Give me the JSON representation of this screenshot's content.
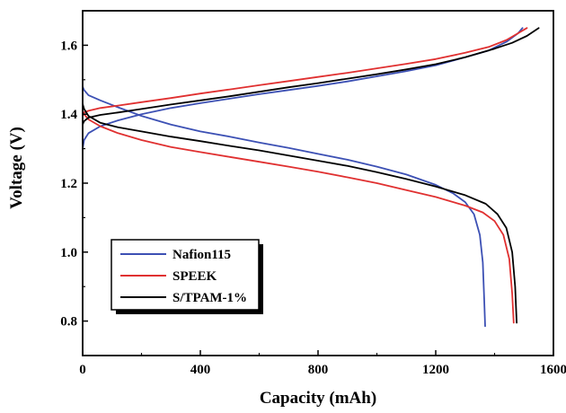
{
  "chart_data": {
    "type": "line",
    "xlabel": "Capacity (mAh)",
    "ylabel": "Voltage (V)",
    "xlim": [
      0,
      1600
    ],
    "ylim": [
      0.7,
      1.7
    ],
    "xticks": [
      0,
      400,
      800,
      1200,
      1600
    ],
    "yticks": [
      0.8,
      1.0,
      1.2,
      1.4,
      1.6
    ],
    "xtick_labels": [
      "0",
      "400",
      "800",
      "1200",
      "1600"
    ],
    "ytick_labels": [
      "0.8",
      "1.0",
      "1.2",
      "1.4",
      "1.6"
    ],
    "grid": false,
    "legend_position": "bottom-left",
    "series": [
      {
        "name": "Nafion115",
        "color": "#3c50b4",
        "charge": {
          "x": [
            0,
            5,
            20,
            60,
            120,
            200,
            300,
            400,
            500,
            600,
            700,
            800,
            900,
            1000,
            1100,
            1200,
            1300,
            1380,
            1440,
            1480,
            1495
          ],
          "y": [
            1.3,
            1.325,
            1.345,
            1.365,
            1.382,
            1.4,
            1.418,
            1.432,
            1.445,
            1.458,
            1.47,
            1.482,
            1.495,
            1.51,
            1.525,
            1.542,
            1.565,
            1.585,
            1.61,
            1.635,
            1.65
          ]
        },
        "discharge": {
          "x": [
            0,
            5,
            20,
            60,
            120,
            200,
            300,
            400,
            500,
            600,
            700,
            800,
            900,
            1000,
            1100,
            1200,
            1260,
            1300,
            1330,
            1350,
            1360,
            1365,
            1368
          ],
          "y": [
            1.48,
            1.47,
            1.455,
            1.44,
            1.42,
            1.395,
            1.37,
            1.35,
            1.335,
            1.318,
            1.302,
            1.285,
            1.268,
            1.248,
            1.225,
            1.195,
            1.17,
            1.145,
            1.11,
            1.05,
            0.97,
            0.86,
            0.785
          ]
        }
      },
      {
        "name": "SPEEK",
        "color": "#e03030",
        "charge": {
          "x": [
            0,
            5,
            20,
            60,
            120,
            200,
            300,
            400,
            500,
            600,
            700,
            800,
            900,
            1000,
            1100,
            1200,
            1300,
            1380,
            1440,
            1480,
            1510
          ],
          "y": [
            1.395,
            1.405,
            1.41,
            1.418,
            1.425,
            1.435,
            1.447,
            1.46,
            1.472,
            1.484,
            1.496,
            1.508,
            1.52,
            1.533,
            1.546,
            1.56,
            1.578,
            1.595,
            1.615,
            1.635,
            1.65
          ]
        },
        "discharge": {
          "x": [
            0,
            5,
            20,
            60,
            120,
            200,
            300,
            400,
            500,
            600,
            700,
            800,
            900,
            1000,
            1100,
            1200,
            1300,
            1360,
            1400,
            1430,
            1450,
            1460,
            1465
          ],
          "y": [
            1.41,
            1.4,
            1.385,
            1.365,
            1.345,
            1.325,
            1.305,
            1.29,
            1.276,
            1.262,
            1.248,
            1.233,
            1.217,
            1.2,
            1.18,
            1.16,
            1.135,
            1.115,
            1.09,
            1.05,
            0.98,
            0.88,
            0.795
          ]
        }
      },
      {
        "name": "S/TPAM-1%",
        "color": "#000000",
        "charge": {
          "x": [
            0,
            5,
            20,
            60,
            120,
            200,
            300,
            400,
            500,
            600,
            700,
            800,
            900,
            1000,
            1100,
            1200,
            1300,
            1400,
            1460,
            1510,
            1550
          ],
          "y": [
            1.37,
            1.38,
            1.39,
            1.398,
            1.405,
            1.415,
            1.428,
            1.44,
            1.452,
            1.465,
            1.478,
            1.49,
            1.503,
            1.516,
            1.53,
            1.545,
            1.565,
            1.59,
            1.607,
            1.627,
            1.65
          ]
        },
        "discharge": {
          "x": [
            0,
            5,
            20,
            60,
            120,
            200,
            300,
            400,
            500,
            600,
            700,
            800,
            900,
            1000,
            1100,
            1200,
            1300,
            1370,
            1410,
            1440,
            1460,
            1470,
            1475
          ],
          "y": [
            1.43,
            1.415,
            1.395,
            1.375,
            1.362,
            1.35,
            1.335,
            1.322,
            1.308,
            1.295,
            1.28,
            1.265,
            1.25,
            1.232,
            1.212,
            1.19,
            1.165,
            1.14,
            1.11,
            1.07,
            1.0,
            0.9,
            0.795
          ]
        }
      }
    ]
  }
}
